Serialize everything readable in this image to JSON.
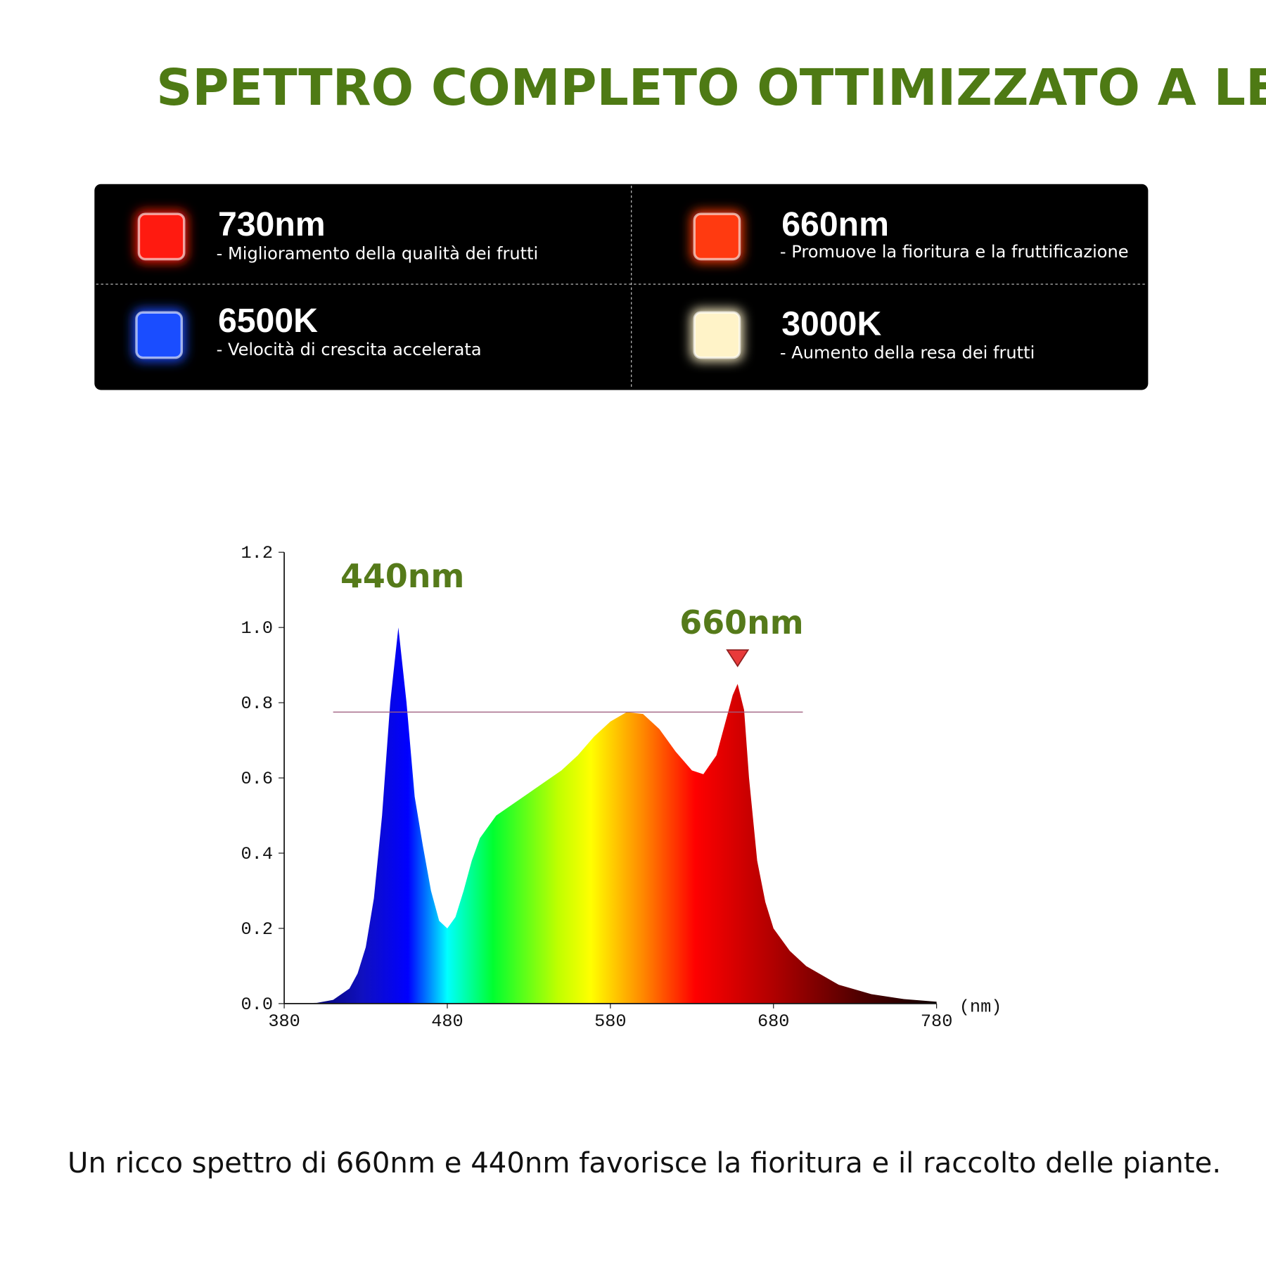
{
  "title": "SPETTRO COMPLETO OTTIMIZZATO A LED",
  "legend_panel": {
    "items": [
      {
        "label": "730nm",
        "description": "- Miglioramento della qualità dei frutti",
        "color": "#ff1a10"
      },
      {
        "label": "660nm",
        "description": "- Promuove la fioritura e la fruttificazione",
        "color": "#ff3a10"
      },
      {
        "label": "6500K",
        "description": "- Velocità di crescita accelerata",
        "color": "#1a4dff"
      },
      {
        "label": "3000K",
        "description": "- Aumento della resa dei frutti",
        "color": "#fff3c8"
      }
    ]
  },
  "chart_data": {
    "type": "area",
    "x": [
      380,
      400,
      410,
      420,
      425,
      430,
      435,
      440,
      445,
      450,
      455,
      460,
      465,
      470,
      475,
      480,
      485,
      490,
      495,
      500,
      510,
      520,
      530,
      540,
      550,
      560,
      570,
      580,
      590,
      600,
      610,
      620,
      630,
      637,
      645,
      650,
      655,
      658,
      662,
      665,
      670,
      675,
      680,
      690,
      700,
      720,
      740,
      760,
      780
    ],
    "values": [
      0,
      0.002,
      0.01,
      0.04,
      0.08,
      0.15,
      0.28,
      0.5,
      0.8,
      1.0,
      0.8,
      0.55,
      0.42,
      0.3,
      0.22,
      0.2,
      0.23,
      0.3,
      0.38,
      0.44,
      0.5,
      0.53,
      0.56,
      0.59,
      0.62,
      0.66,
      0.71,
      0.75,
      0.775,
      0.77,
      0.73,
      0.67,
      0.62,
      0.61,
      0.66,
      0.74,
      0.82,
      0.85,
      0.78,
      0.6,
      0.38,
      0.27,
      0.2,
      0.14,
      0.1,
      0.05,
      0.025,
      0.012,
      0.005
    ],
    "xlim": [
      380,
      780
    ],
    "ylim": [
      0,
      1.2
    ],
    "xticks": [
      380,
      480,
      580,
      680,
      780
    ],
    "yticks": [
      {
        "value": 0,
        "label": "0.0"
      },
      {
        "value": 0.2,
        "label": "0.2"
      },
      {
        "value": 0.4,
        "label": "0.4"
      },
      {
        "value": 0.6,
        "label": "0.6"
      },
      {
        "value": 0.8,
        "label": "0.8"
      },
      {
        "value": 1.0,
        "label": "1.0"
      },
      {
        "value": 1.2,
        "label": "1.2"
      }
    ],
    "x_unit": "(nm)",
    "reference_line": {
      "y": 0.775,
      "x": [
        410,
        698
      ],
      "color": "#a06080"
    },
    "annotations": [
      {
        "text": "440nm",
        "x": 450,
        "marker": false
      },
      {
        "text": "660nm",
        "x": 658,
        "marker": true
      }
    ]
  },
  "footer": "Un ricco spettro di 660nm e 440nm favorisce la fioritura e il raccolto delle piante."
}
